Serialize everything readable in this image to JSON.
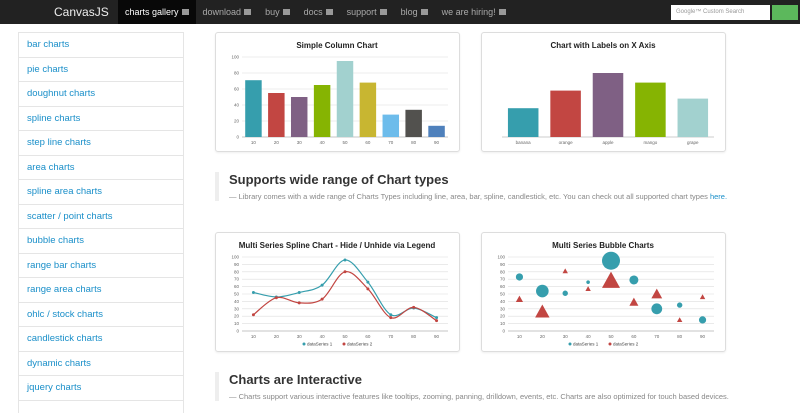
{
  "nav": {
    "logo": "CanvasJS",
    "items": [
      {
        "label": "charts gallery",
        "active": true
      },
      {
        "label": "download"
      },
      {
        "label": "buy"
      },
      {
        "label": "docs"
      },
      {
        "label": "support"
      },
      {
        "label": "blog"
      },
      {
        "label": "we are hiring!"
      }
    ],
    "search_placeholder": "Google™ Custom Search"
  },
  "sidebar": {
    "items": [
      "bar charts",
      "pie charts",
      "doughnut charts",
      "spline charts",
      "step line charts",
      "area charts",
      "spline area charts",
      "scatter / point charts",
      "bubble charts",
      "range bar charts",
      "range area charts",
      "ohlc / stock charts",
      "candlestick charts",
      "dynamic charts",
      "jquery charts"
    ]
  },
  "charts": [
    {
      "type": "column",
      "title": "Simple Column Chart",
      "categories": [
        "10",
        "20",
        "30",
        "40",
        "50",
        "60",
        "70",
        "80",
        "90"
      ],
      "values": [
        71,
        55,
        50,
        65,
        95,
        68,
        28,
        34,
        14
      ],
      "colors": [
        "#369ead",
        "#c24642",
        "#7f6084",
        "#86b402",
        "#a2d1cf",
        "#c8b631",
        "#6dbceb",
        "#52514e",
        "#4f81bc"
      ],
      "ylim": [
        0,
        100
      ],
      "yticks": [
        0,
        20,
        40,
        60,
        80,
        100
      ],
      "grid": true
    },
    {
      "type": "column",
      "title": "Chart with Labels on X Axis",
      "categories": [
        "banana",
        "orange",
        "apple",
        "mango",
        "grape"
      ],
      "values": [
        18,
        29,
        40,
        34,
        24
      ],
      "colors": [
        "#369ead",
        "#c24642",
        "#7f6084",
        "#86b402",
        "#a2d1cf"
      ],
      "ylim": [
        0,
        50
      ],
      "grid": false
    },
    {
      "type": "spline",
      "title": "Multi Series Spline Chart - Hide / Unhide via Legend",
      "x": [
        10,
        20,
        30,
        40,
        50,
        60,
        70,
        80,
        90
      ],
      "xlim": [
        5,
        95
      ],
      "xticks": [
        10,
        20,
        30,
        40,
        50,
        60,
        70,
        80,
        90
      ],
      "ylim": [
        0,
        100
      ],
      "yticks": [
        0,
        10,
        20,
        30,
        40,
        50,
        60,
        70,
        80,
        90,
        100
      ],
      "grid": true,
      "series": [
        {
          "name": "dataSeries 1",
          "color": "#369ead",
          "values": [
            52,
            46,
            52,
            62,
            96,
            66,
            22,
            31,
            18
          ]
        },
        {
          "name": "dataSeries 2",
          "color": "#c24642",
          "values": [
            22,
            45,
            38,
            43,
            80,
            57,
            18,
            32,
            14
          ]
        }
      ]
    },
    {
      "type": "bubble",
      "title": "Multi Series Bubble Charts",
      "x": [
        10,
        20,
        30,
        40,
        50,
        60,
        70,
        80,
        90
      ],
      "xlim": [
        5,
        95
      ],
      "xticks": [
        10,
        20,
        30,
        40,
        50,
        60,
        70,
        80,
        90
      ],
      "ylim": [
        0,
        100
      ],
      "yticks": [
        0,
        10,
        20,
        30,
        40,
        50,
        60,
        70,
        80,
        90,
        100
      ],
      "grid": true,
      "series": [
        {
          "name": "dataSeries 1",
          "color": "#369ead",
          "marker": "circle",
          "values": [
            73,
            54,
            51,
            66,
            95,
            69,
            30,
            35,
            15
          ],
          "sizes": [
            4,
            7,
            3,
            2,
            10,
            5,
            6,
            3,
            4
          ]
        },
        {
          "name": "dataSeries 2",
          "color": "#c24642",
          "marker": "triangle",
          "values": [
            43,
            26,
            81,
            57,
            68,
            39,
            50,
            15,
            46
          ],
          "sizes": [
            4,
            8,
            3,
            3,
            10,
            5,
            6,
            3,
            3
          ]
        }
      ]
    }
  ],
  "sections": [
    {
      "title": "Supports wide range of Chart types",
      "text": "— Library comes with a wide range of Charts Types including line, area, bar, spline, candlestick, etc. You can check out all supported chart types",
      "link": "here."
    },
    {
      "title": "Charts are Interactive",
      "text": "— Charts support various interactive features like tooltips, zooming, panning, drilldown, events, etc. Charts are also optimized for touch based devices."
    }
  ]
}
